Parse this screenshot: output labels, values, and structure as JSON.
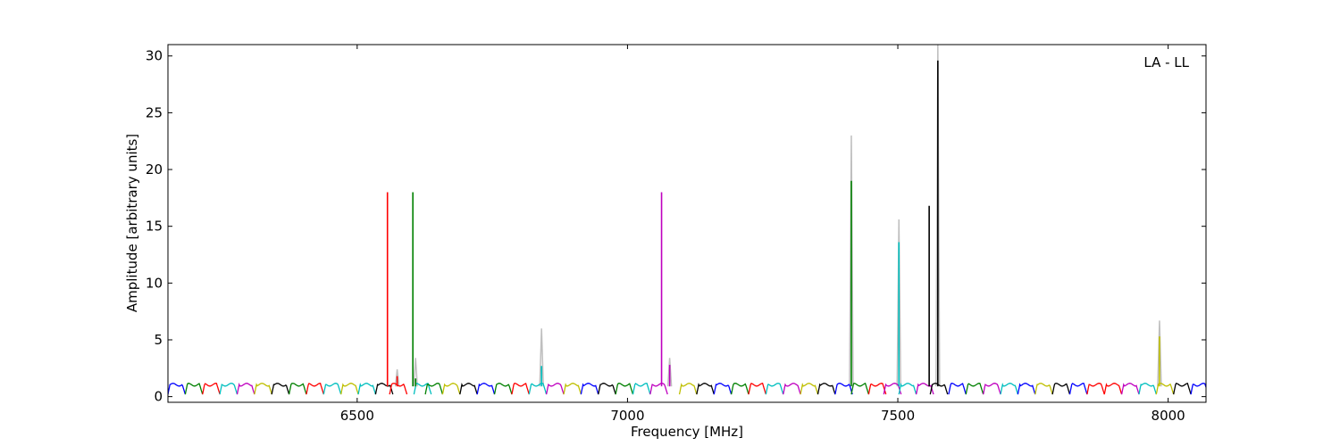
{
  "chart_data": {
    "type": "line",
    "title": "",
    "annotation": "LA - LL",
    "xlabel": "Frequency [MHz]",
    "ylabel": "Amplitude [arbitrary units]",
    "xlim": [
      6150,
      8070
    ],
    "ylim": [
      -0.5,
      31
    ],
    "xticks": [
      6500,
      7000,
      7500,
      8000
    ],
    "xtick_labels": [
      "6500",
      "7000",
      "7500",
      "8000"
    ],
    "yticks": [
      0,
      5,
      10,
      15,
      20,
      25,
      30
    ],
    "ytick_labels": [
      "0",
      "5",
      "10",
      "15",
      "20",
      "25",
      "30"
    ],
    "grid": false,
    "legend": "none",
    "channel_width_mhz": 32,
    "series_colors": [
      "#0000ff",
      "#008000",
      "#ff0000",
      "#00bfbf",
      "#bf00bf",
      "#bfbf00",
      "#000000"
    ],
    "channels": [
      {
        "start": 6150,
        "color": "#0000ff"
      },
      {
        "start": 6182,
        "color": "#008000"
      },
      {
        "start": 6214,
        "color": "#ff0000"
      },
      {
        "start": 6246,
        "color": "#00bfbf"
      },
      {
        "start": 6278,
        "color": "#bf00bf"
      },
      {
        "start": 6310,
        "color": "#bfbf00"
      },
      {
        "start": 6342,
        "color": "#000000"
      },
      {
        "start": 6374,
        "color": "#008000"
      },
      {
        "start": 6406,
        "color": "#ff0000"
      },
      {
        "start": 6438,
        "color": "#00bfbf"
      },
      {
        "start": 6470,
        "color": "#bfbf00"
      },
      {
        "start": 6502,
        "color": "#00bfbf"
      },
      {
        "start": 6534,
        "color": "#000000"
      },
      {
        "start": 6560,
        "color": "#ff0000"
      },
      {
        "start": 6605,
        "color": "#00bfbf"
      },
      {
        "start": 6626,
        "color": "#008000"
      },
      {
        "start": 6658,
        "color": "#bfbf00"
      },
      {
        "start": 6690,
        "color": "#000000"
      },
      {
        "start": 6722,
        "color": "#0000ff"
      },
      {
        "start": 6754,
        "color": "#008000"
      },
      {
        "start": 6786,
        "color": "#ff0000"
      },
      {
        "start": 6818,
        "color": "#00bfbf"
      },
      {
        "start": 6850,
        "color": "#bf00bf"
      },
      {
        "start": 6882,
        "color": "#bfbf00"
      },
      {
        "start": 6914,
        "color": "#0000ff"
      },
      {
        "start": 6946,
        "color": "#000000"
      },
      {
        "start": 6978,
        "color": "#008000"
      },
      {
        "start": 7010,
        "color": "#00bfbf"
      },
      {
        "start": 7042,
        "color": "#bf00bf"
      },
      {
        "start": 7096,
        "color": "#bfbf00"
      },
      {
        "start": 7128,
        "color": "#000000"
      },
      {
        "start": 7160,
        "color": "#0000ff"
      },
      {
        "start": 7192,
        "color": "#008000"
      },
      {
        "start": 7224,
        "color": "#ff0000"
      },
      {
        "start": 7256,
        "color": "#00bfbf"
      },
      {
        "start": 7288,
        "color": "#bf00bf"
      },
      {
        "start": 7320,
        "color": "#bfbf00"
      },
      {
        "start": 7352,
        "color": "#000000"
      },
      {
        "start": 7384,
        "color": "#0000ff"
      },
      {
        "start": 7414,
        "color": "#008000"
      },
      {
        "start": 7446,
        "color": "#ff0000"
      },
      {
        "start": 7474,
        "color": "#bf00bf"
      },
      {
        "start": 7502,
        "color": "#00bfbf"
      },
      {
        "start": 7534,
        "color": "#bf00bf"
      },
      {
        "start": 7560,
        "color": "#000000"
      },
      {
        "start": 7594,
        "color": "#0000ff"
      },
      {
        "start": 7626,
        "color": "#008000"
      },
      {
        "start": 7658,
        "color": "#bf00bf"
      },
      {
        "start": 7690,
        "color": "#00bfbf"
      },
      {
        "start": 7722,
        "color": "#0000ff"
      },
      {
        "start": 7754,
        "color": "#bfbf00"
      },
      {
        "start": 7786,
        "color": "#000000"
      },
      {
        "start": 7818,
        "color": "#0000ff"
      },
      {
        "start": 7850,
        "color": "#ff0000"
      },
      {
        "start": 7882,
        "color": "#ff0000"
      },
      {
        "start": 7914,
        "color": "#bf00bf"
      },
      {
        "start": 7946,
        "color": "#00bfbf"
      },
      {
        "start": 7978,
        "color": "#bfbf00"
      },
      {
        "start": 8010,
        "color": "#000000"
      },
      {
        "start": 8042,
        "color": "#0000ff"
      }
    ],
    "peaks": [
      {
        "x": 6556,
        "y": 18.0,
        "color": "#ff0000",
        "gray_y": 0
      },
      {
        "x": 6574,
        "y": 1.8,
        "color": "#ff0000",
        "gray_y": 2.4
      },
      {
        "x": 6603,
        "y": 18.0,
        "color": "#008000",
        "gray_y": 0
      },
      {
        "x": 6608,
        "y": 1.6,
        "color": "#008000",
        "gray_y": 3.4
      },
      {
        "x": 6841,
        "y": 2.7,
        "color": "#00bfbf",
        "gray_y": 6.0
      },
      {
        "x": 7063,
        "y": 18.0,
        "color": "#bf00bf",
        "gray_y": 0
      },
      {
        "x": 7078,
        "y": 2.8,
        "color": "#bf00bf",
        "gray_y": 3.4
      },
      {
        "x": 7414,
        "y": 19.0,
        "color": "#008000",
        "gray_y": 23.0
      },
      {
        "x": 7502,
        "y": 13.6,
        "color": "#00bfbf",
        "gray_y": 15.6
      },
      {
        "x": 7558,
        "y": 16.8,
        "color": "#000000",
        "gray_y": 0
      },
      {
        "x": 7574,
        "y": 29.6,
        "color": "#000000",
        "gray_y": 31.0
      },
      {
        "x": 7984,
        "y": 5.3,
        "color": "#bfbf00",
        "gray_y": 6.7
      }
    ]
  }
}
